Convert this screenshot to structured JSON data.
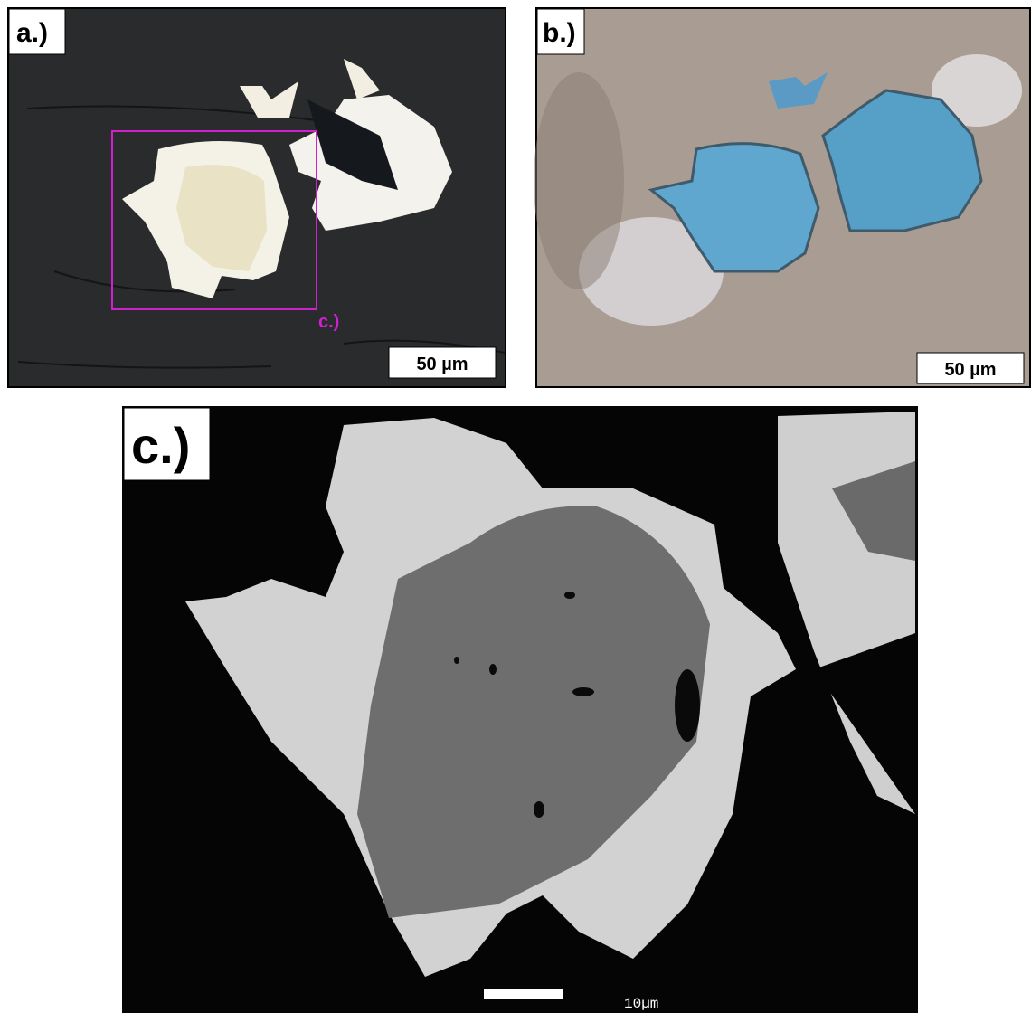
{
  "panels": [
    {
      "label": "a.)",
      "scale_bar": "50 µm",
      "inset_label": "c.)"
    },
    {
      "label": "b.)",
      "scale_bar": "50 µm"
    },
    {
      "label": "c.)",
      "scale_bar": "10µm"
    }
  ]
}
